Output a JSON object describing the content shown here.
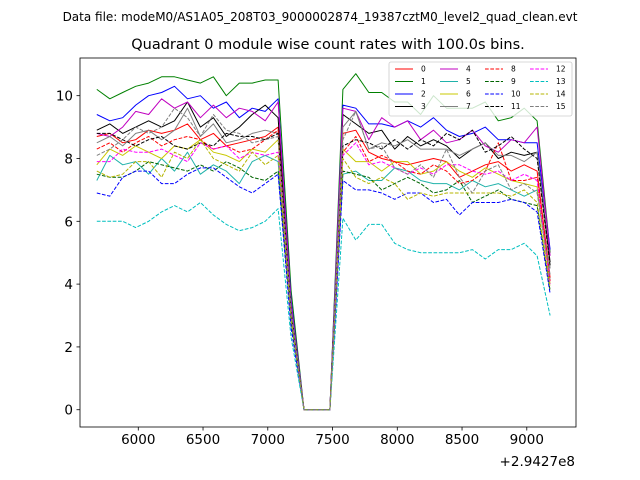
{
  "figure": {
    "suptitle": "Data file: modeM0/AS1A05_208T03_9000002874_19387cztM0_level2_quad_clean.evt",
    "title": "Quadrant 0 module wise count rates with 100.0s bins.",
    "offset_label": "+2.9427e8"
  },
  "chart_data": {
    "type": "line",
    "title": "Quadrant 0 module wise count rates with 100.0s bins.",
    "xlabel": "",
    "ylabel": "",
    "x_offset": 294270000,
    "xlim": [
      5550,
      9380
    ],
    "ylim": [
      -0.55,
      11.2
    ],
    "grid": false,
    "legend_position": "top-right",
    "xticks": [
      6000,
      6500,
      7000,
      7500,
      8000,
      8500,
      9000
    ],
    "yticks": [
      0,
      2,
      4,
      6,
      8,
      10
    ],
    "x": [
      5680,
      5780,
      5880,
      5980,
      6080,
      6180,
      6280,
      6380,
      6480,
      6580,
      6680,
      6780,
      6880,
      6980,
      7080,
      7180,
      7280,
      7380,
      7480,
      7580,
      7680,
      7780,
      7880,
      7980,
      8080,
      8180,
      8280,
      8380,
      8480,
      8580,
      8680,
      8780,
      8880,
      8980,
      9080,
      9180
    ],
    "series": [
      {
        "name": "0",
        "color": "#ff0000",
        "dash": "solid",
        "values": [
          8.7,
          8.8,
          8.5,
          8.6,
          8.9,
          8.8,
          8.9,
          9.1,
          8.6,
          8.8,
          8.4,
          8.5,
          8.6,
          8.7,
          9.0,
          3.2,
          0.0,
          0.0,
          0.0,
          8.8,
          8.9,
          8.2,
          8.0,
          7.9,
          7.8,
          7.9,
          8.0,
          7.9,
          7.4,
          7.6,
          7.8,
          7.9,
          7.6,
          7.8,
          7.6,
          4.2
        ]
      },
      {
        "name": "1",
        "color": "#008000",
        "dash": "solid",
        "values": [
          10.2,
          9.9,
          10.1,
          10.3,
          10.4,
          10.6,
          10.6,
          10.5,
          10.4,
          10.6,
          10.0,
          10.4,
          10.4,
          10.5,
          10.5,
          3.8,
          0.0,
          0.0,
          0.0,
          10.2,
          10.7,
          10.1,
          10.1,
          9.8,
          9.8,
          9.4,
          10.0,
          9.6,
          9.6,
          9.6,
          9.8,
          9.2,
          9.3,
          9.6,
          9.2,
          5.0
        ]
      },
      {
        "name": "2",
        "color": "#0000ff",
        "dash": "solid",
        "values": [
          9.4,
          9.2,
          9.3,
          9.7,
          10.0,
          10.1,
          10.3,
          9.9,
          10.0,
          9.6,
          9.8,
          9.3,
          9.6,
          9.5,
          9.9,
          3.5,
          0.0,
          0.0,
          0.0,
          9.7,
          9.6,
          9.1,
          9.1,
          9.0,
          9.2,
          9.0,
          9.3,
          8.9,
          8.7,
          8.8,
          9.0,
          8.6,
          8.6,
          8.5,
          8.5,
          5.1
        ]
      },
      {
        "name": "3",
        "color": "#000000",
        "dash": "solid",
        "values": [
          8.9,
          9.1,
          8.8,
          9.0,
          9.2,
          9.0,
          9.2,
          9.8,
          9.0,
          9.3,
          8.7,
          9.0,
          9.4,
          9.7,
          9.3,
          3.3,
          0.0,
          0.0,
          0.0,
          9.4,
          9.1,
          8.8,
          8.9,
          8.3,
          8.7,
          8.4,
          8.6,
          8.4,
          8.0,
          8.3,
          8.5,
          8.0,
          8.2,
          8.1,
          8.2,
          4.7
        ]
      },
      {
        "name": "4",
        "color": "#c000c0",
        "dash": "solid",
        "values": [
          8.8,
          8.7,
          9.0,
          9.5,
          9.4,
          9.9,
          9.6,
          9.8,
          9.3,
          9.7,
          9.3,
          9.6,
          9.5,
          9.2,
          9.8,
          3.4,
          0.0,
          0.0,
          0.0,
          9.6,
          9.5,
          8.6,
          9.3,
          9.0,
          9.2,
          8.6,
          8.9,
          8.5,
          8.6,
          8.9,
          8.4,
          8.2,
          8.6,
          8.5,
          9.0,
          4.9
        ]
      },
      {
        "name": "5",
        "color": "#20b2aa",
        "dash": "solid",
        "values": [
          7.3,
          8.1,
          7.8,
          7.9,
          7.5,
          8.0,
          7.6,
          8.2,
          7.5,
          7.8,
          7.6,
          7.2,
          7.9,
          8.1,
          7.9,
          2.8,
          0.0,
          0.0,
          0.0,
          7.5,
          7.6,
          7.3,
          7.3,
          7.7,
          7.6,
          7.3,
          7.2,
          7.2,
          7.0,
          7.3,
          7.1,
          7.2,
          7.0,
          6.8,
          7.0,
          4.1
        ]
      },
      {
        "name": "6",
        "color": "#c8c800",
        "dash": "solid",
        "values": [
          7.8,
          8.3,
          8.1,
          8.4,
          8.2,
          8.0,
          8.4,
          8.3,
          8.6,
          8.2,
          8.1,
          7.9,
          8.3,
          8.2,
          8.6,
          3.1,
          0.0,
          0.0,
          0.0,
          8.3,
          7.9,
          7.9,
          7.6,
          7.9,
          7.9,
          7.5,
          7.6,
          7.9,
          7.6,
          7.4,
          7.7,
          7.5,
          7.3,
          7.2,
          7.1,
          4.0
        ]
      },
      {
        "name": "7",
        "color": "#808080",
        "dash": "solid",
        "values": [
          8.5,
          8.7,
          8.4,
          8.8,
          8.9,
          8.6,
          8.9,
          9.6,
          8.7,
          9.1,
          8.5,
          8.6,
          8.8,
          8.9,
          8.8,
          3.2,
          0.0,
          0.0,
          0.0,
          9.0,
          9.5,
          8.3,
          8.5,
          8.4,
          8.6,
          8.3,
          8.3,
          8.3,
          8.1,
          8.3,
          8.5,
          8.1,
          8.1,
          7.9,
          8.2,
          4.5
        ]
      },
      {
        "name": "8",
        "color": "#ff0000",
        "dash": "dashed",
        "values": [
          8.3,
          8.5,
          8.2,
          8.5,
          8.7,
          8.4,
          8.6,
          8.7,
          8.6,
          8.3,
          8.4,
          8.2,
          8.3,
          8.6,
          8.9,
          3.0,
          0.0,
          0.0,
          0.0,
          8.2,
          8.7,
          7.9,
          8.1,
          7.9,
          7.6,
          7.5,
          7.8,
          7.6,
          7.2,
          7.3,
          7.6,
          8.5,
          7.3,
          7.3,
          7.4,
          4.1
        ]
      },
      {
        "name": "9",
        "color": "#006400",
        "dash": "dashed",
        "values": [
          7.5,
          7.4,
          7.4,
          7.6,
          7.9,
          7.8,
          7.7,
          7.6,
          7.8,
          7.6,
          7.9,
          7.7,
          7.4,
          7.3,
          7.6,
          2.8,
          0.0,
          0.0,
          0.0,
          7.6,
          7.5,
          7.4,
          7.0,
          7.2,
          7.4,
          7.2,
          6.9,
          7.0,
          7.3,
          6.6,
          6.8,
          7.0,
          6.7,
          6.6,
          6.5,
          3.8
        ]
      },
      {
        "name": "10",
        "color": "#0000ff",
        "dash": "dashed",
        "values": [
          6.9,
          6.8,
          7.4,
          7.6,
          7.6,
          7.2,
          7.2,
          7.5,
          7.7,
          7.7,
          7.4,
          7.1,
          6.9,
          7.2,
          7.5,
          2.6,
          0.0,
          0.0,
          0.0,
          7.3,
          7.0,
          7.0,
          6.9,
          6.7,
          6.9,
          6.9,
          6.6,
          6.7,
          6.2,
          6.6,
          6.6,
          6.6,
          6.7,
          6.6,
          6.3,
          3.7
        ]
      },
      {
        "name": "11",
        "color": "#000000",
        "dash": "dashed",
        "values": [
          8.8,
          8.8,
          8.6,
          8.4,
          8.6,
          8.7,
          8.4,
          8.3,
          8.5,
          8.4,
          8.8,
          8.7,
          8.7,
          8.6,
          8.8,
          3.1,
          0.0,
          0.0,
          0.0,
          8.4,
          8.6,
          8.5,
          8.3,
          8.6,
          8.3,
          8.6,
          8.4,
          8.8,
          8.6,
          8.9,
          8.2,
          8.4,
          8.7,
          8.3,
          8.0,
          4.6
        ]
      },
      {
        "name": "12",
        "color": "#ff00ff",
        "dash": "dashed",
        "values": [
          7.9,
          7.9,
          8.3,
          8.2,
          8.2,
          8.3,
          8.1,
          7.9,
          8.5,
          8.3,
          8.4,
          8.0,
          8.2,
          8.1,
          8.2,
          3.0,
          0.0,
          0.0,
          0.0,
          8.1,
          8.5,
          7.8,
          7.9,
          7.7,
          7.5,
          7.7,
          7.5,
          7.8,
          7.8,
          7.6,
          7.5,
          7.6,
          7.3,
          7.5,
          7.3,
          4.0
        ]
      },
      {
        "name": "13",
        "color": "#00bfbf",
        "dash": "dashed",
        "values": [
          6.0,
          6.0,
          6.0,
          5.8,
          6.0,
          6.3,
          6.5,
          6.3,
          6.6,
          6.2,
          5.9,
          5.7,
          5.8,
          6.0,
          6.4,
          2.3,
          0.0,
          0.0,
          0.0,
          6.1,
          5.4,
          5.9,
          5.9,
          5.3,
          5.1,
          5.0,
          5.0,
          5.0,
          5.0,
          5.1,
          4.8,
          5.1,
          5.1,
          5.3,
          4.9,
          3.0
        ]
      },
      {
        "name": "14",
        "color": "#b4b400",
        "dash": "dashed",
        "values": [
          7.6,
          7.4,
          7.5,
          7.9,
          7.9,
          7.4,
          8.2,
          8.0,
          8.6,
          8.0,
          7.8,
          7.6,
          8.2,
          7.8,
          8.1,
          2.9,
          0.0,
          0.0,
          0.0,
          8.0,
          7.4,
          7.2,
          7.4,
          7.2,
          6.7,
          6.9,
          6.8,
          6.9,
          6.9,
          6.9,
          6.9,
          6.9,
          6.8,
          7.0,
          6.6,
          3.9
        ]
      },
      {
        "name": "15",
        "color": "#7f7f7f",
        "dash": "dashed",
        "values": [
          8.1,
          8.3,
          8.6,
          9.0,
          8.8,
          9.0,
          9.6,
          9.3,
          8.7,
          9.4,
          8.9,
          8.8,
          8.5,
          8.6,
          8.7,
          3.1,
          0.0,
          0.0,
          0.0,
          8.6,
          9.5,
          8.3,
          8.4,
          7.7,
          7.5,
          7.8,
          7.4,
          8.3,
          7.4,
          6.9,
          7.6,
          7.8,
          7.0,
          7.2,
          6.9,
          4.3
        ]
      }
    ]
  }
}
